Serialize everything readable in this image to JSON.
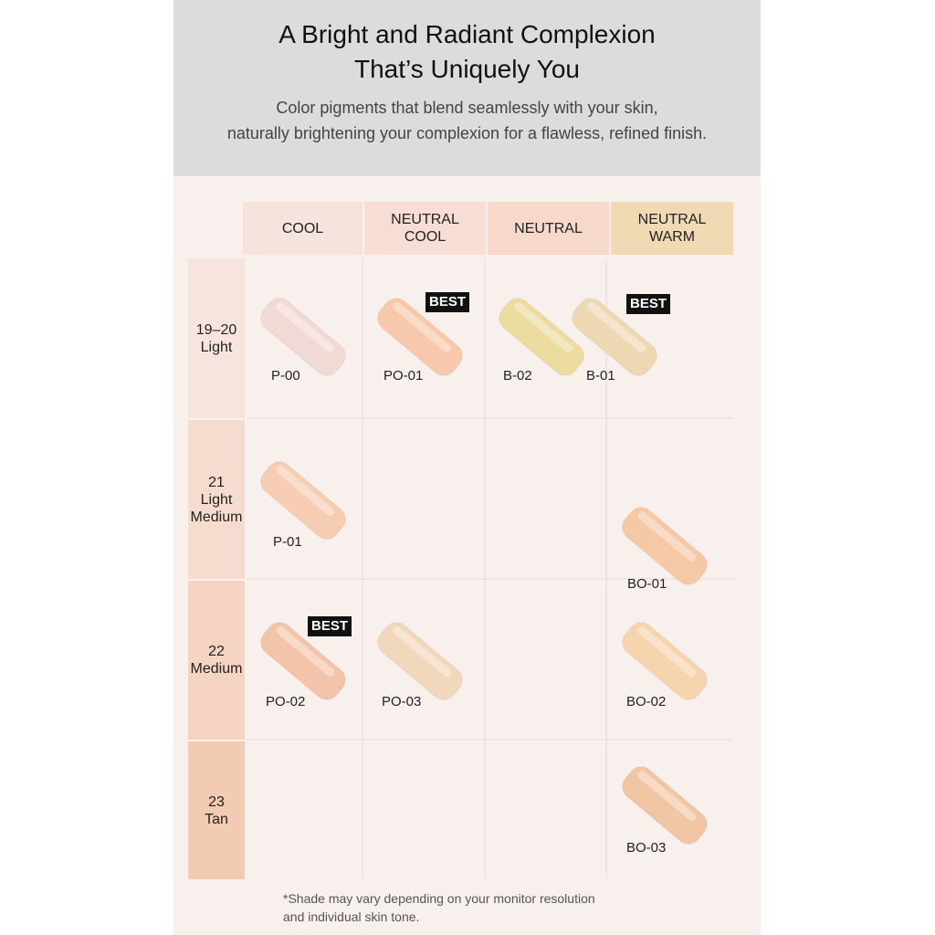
{
  "header": {
    "title": [
      "A Bright and Radiant Complexion",
      "That’s Uniquely You"
    ],
    "subtitle": [
      "Color pigments that blend seamlessly with your skin,",
      "naturally brightening your complexion for a flawless, refined finish."
    ]
  },
  "columns": [
    [
      "COOL"
    ],
    [
      "NEUTRAL",
      "COOL"
    ],
    [
      "NEUTRAL"
    ],
    [
      "NEUTRAL",
      "WARM"
    ]
  ],
  "rows": [
    [
      "19–20",
      "Light"
    ],
    [
      "21",
      "Light",
      "Medium"
    ],
    [
      "22",
      "Medium"
    ],
    [
      "23",
      "Tan"
    ]
  ],
  "swatches": [
    {
      "code": "P-00"
    },
    {
      "code": "PO-01",
      "badge": "BEST"
    },
    {
      "code": "B-02"
    },
    {
      "code": "B-01",
      "badge": "BEST"
    },
    {
      "code": "P-01"
    },
    {
      "code": "BO-01"
    },
    {
      "code": "PO-02",
      "badge": "BEST"
    },
    {
      "code": "PO-03"
    },
    {
      "code": "BO-02"
    },
    {
      "code": "BO-03"
    }
  ],
  "footnote": [
    "*Shade may vary depending on your monitor resolution",
    "and individual skin tone."
  ]
}
